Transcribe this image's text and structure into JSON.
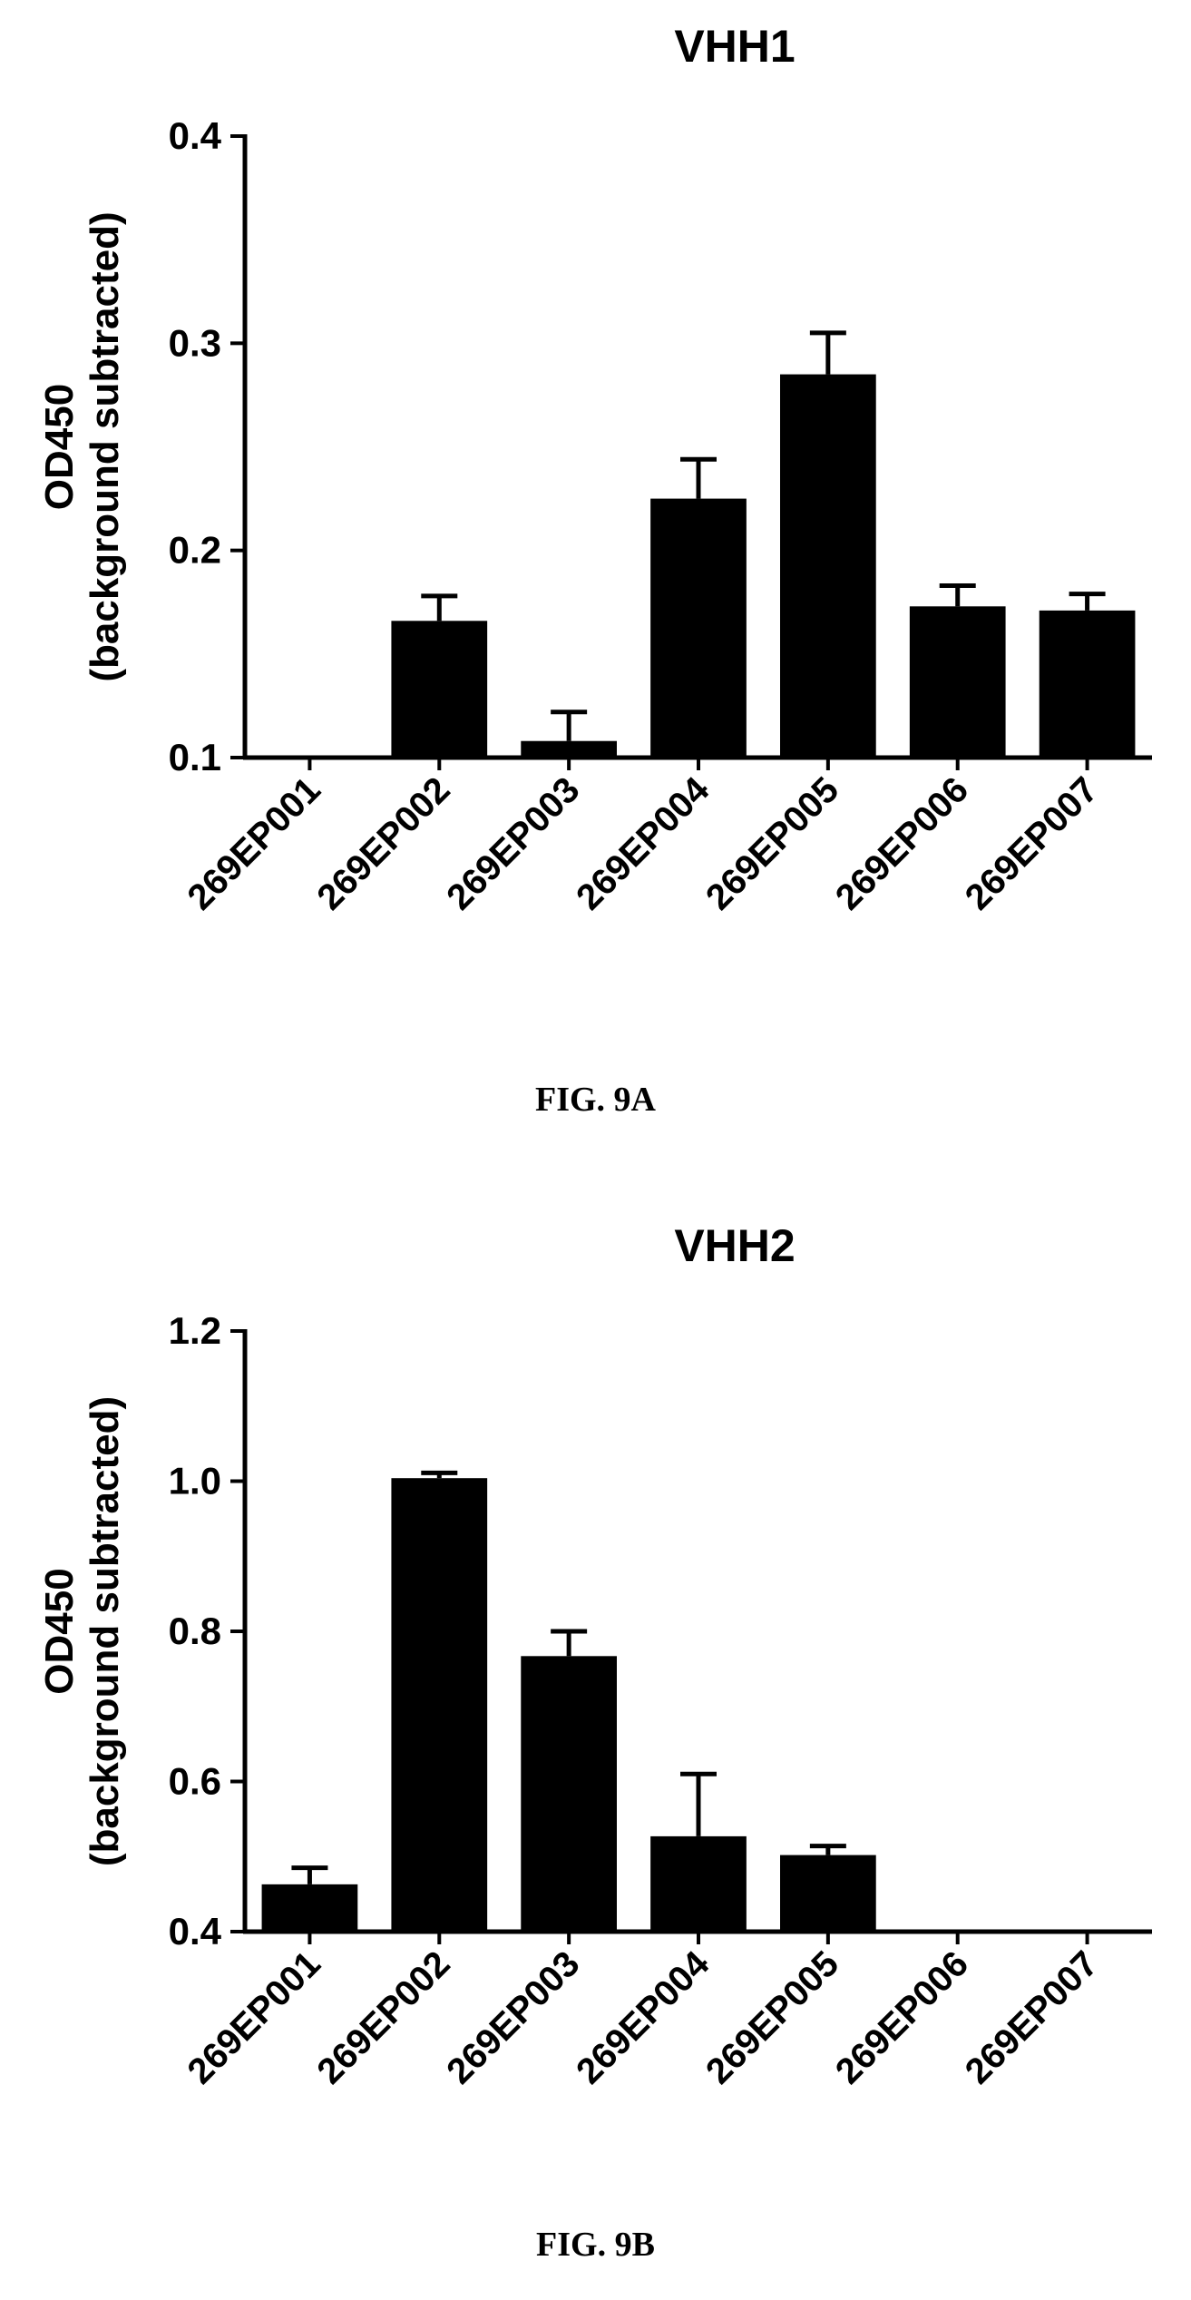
{
  "figures": [
    {
      "fig_label": "FIG. 9A",
      "chart_data": {
        "type": "bar",
        "title": "VHH1",
        "ylabel_line1": "OD450",
        "ylabel_line2": "(background subtracted)",
        "xlabel": "",
        "categories": [
          "269EP001",
          "269EP002",
          "269EP003",
          "269EP004",
          "269EP005",
          "269EP006",
          "269EP007"
        ],
        "values": [
          0.1,
          0.166,
          0.108,
          0.225,
          0.285,
          0.173,
          0.171
        ],
        "errors": [
          0,
          0.012,
          0.014,
          0.019,
          0.02,
          0.01,
          0.008
        ],
        "ylim": [
          0.1,
          0.4
        ],
        "yticks": [
          "0.1",
          "0.2",
          "0.3",
          "0.4"
        ],
        "ytick_values": [
          0.1,
          0.2,
          0.3,
          0.4
        ],
        "grid": false,
        "bar_color": "#000000"
      }
    },
    {
      "fig_label": "FIG. 9B",
      "chart_data": {
        "type": "bar",
        "title": "VHH2",
        "ylabel_line1": "OD450",
        "ylabel_line2": "(background subtracted)",
        "xlabel": "",
        "categories": [
          "269EP001",
          "269EP002",
          "269EP003",
          "269EP004",
          "269EP005",
          "269EP006",
          "269EP007"
        ],
        "values": [
          0.463,
          1.004,
          0.767,
          0.527,
          0.502,
          0.4,
          0.4
        ],
        "errors": [
          0.022,
          0.007,
          0.033,
          0.083,
          0.012,
          0,
          0
        ],
        "ylim": [
          0.4,
          1.2
        ],
        "yticks": [
          "0.4",
          "0.6",
          "0.8",
          "1.0",
          "1.2"
        ],
        "ytick_values": [
          0.4,
          0.6,
          0.8,
          1.0,
          1.2
        ],
        "grid": false,
        "bar_color": "#000000"
      }
    }
  ]
}
